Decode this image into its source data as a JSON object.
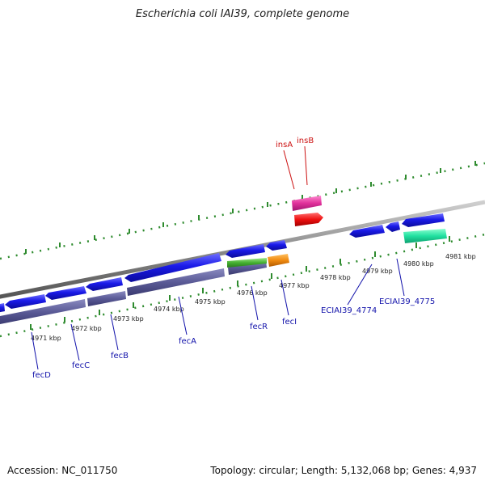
{
  "title": "Escherichia coli IAI39, complete genome",
  "footer": {
    "accession": "Accession: NC_011750",
    "summary": "Topology: circular; Length: 5,132,068 bp; Genes: 4,937"
  },
  "colors": {
    "backbone": "#888888",
    "tick": "#2e8b2e",
    "label_red": "#cc1111",
    "label_blue": "#1111aa",
    "cds": "#1010e0",
    "rna_bar": "#55558f"
  },
  "kbp_labels": [
    {
      "kbp": 4971,
      "text": "4971 kbp"
    },
    {
      "kbp": 4972,
      "text": "4972 kbp"
    },
    {
      "kbp": 4973,
      "text": "4973 kbp"
    },
    {
      "kbp": 4974,
      "text": "4974 kbp"
    },
    {
      "kbp": 4975,
      "text": "4975 kbp"
    },
    {
      "kbp": 4976,
      "text": "4976 kbp"
    },
    {
      "kbp": 4977,
      "text": "4977 kbp"
    },
    {
      "kbp": 4978,
      "text": "4978 kbp"
    },
    {
      "kbp": 4979,
      "text": "4979 kbp"
    },
    {
      "kbp": 4980,
      "text": "4980 kbp"
    },
    {
      "kbp": 4981,
      "text": "4981 kbp"
    }
  ],
  "gene_labels": [
    {
      "name": "insA",
      "color": "red"
    },
    {
      "name": "insB",
      "color": "red"
    },
    {
      "name": "fecD",
      "color": "blue"
    },
    {
      "name": "fecC",
      "color": "blue"
    },
    {
      "name": "fecB",
      "color": "blue"
    },
    {
      "name": "fecA",
      "color": "blue"
    },
    {
      "name": "fecR",
      "color": "blue"
    },
    {
      "name": "fecI",
      "color": "blue"
    },
    {
      "name": "ECIAI39_4774",
      "color": "blue"
    },
    {
      "name": "ECIAI39_4775",
      "color": "blue"
    }
  ]
}
